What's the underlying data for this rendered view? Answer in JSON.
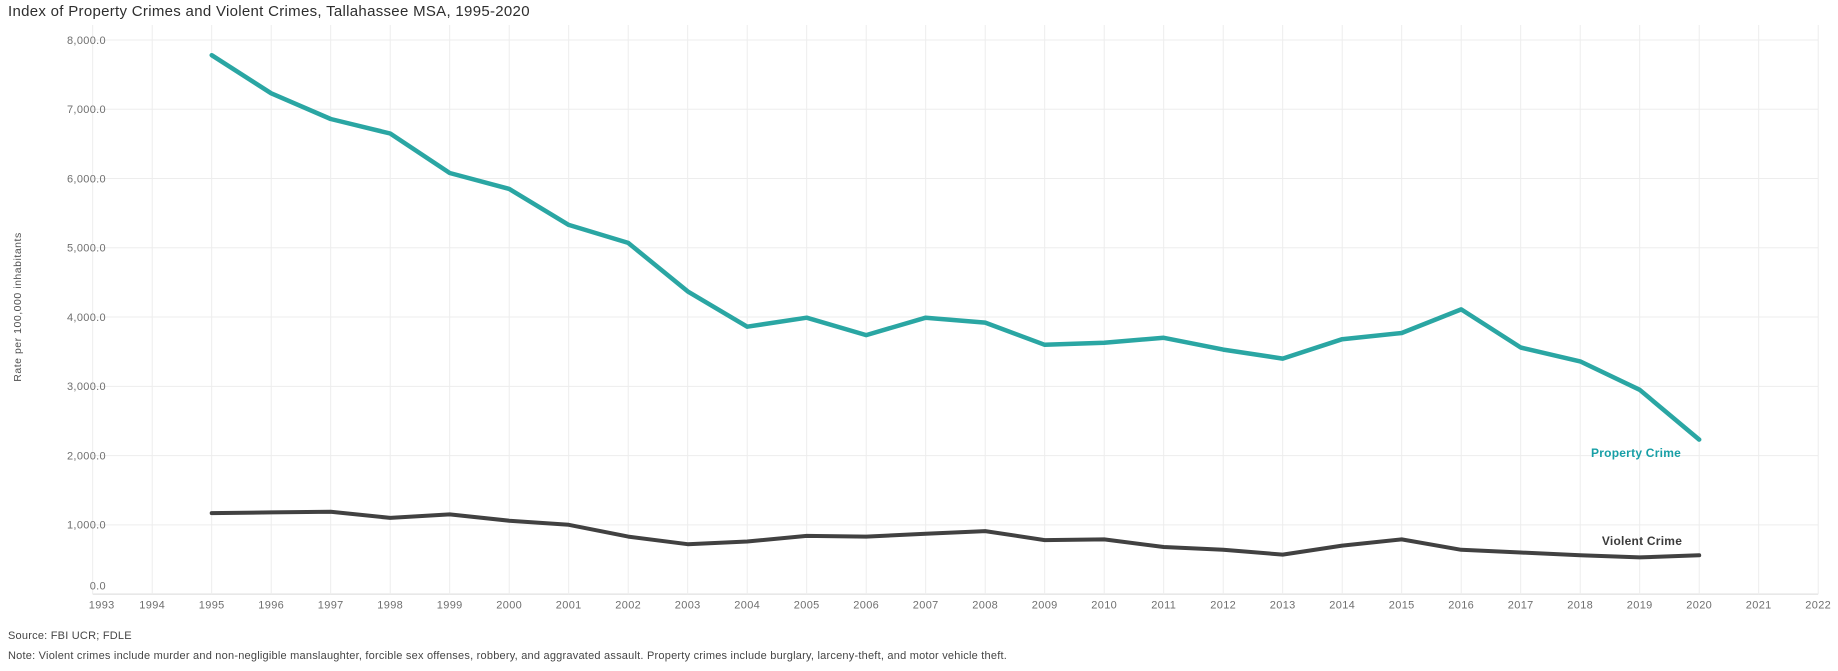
{
  "page": {
    "background": "#ffffff"
  },
  "chart_data": {
    "type": "line",
    "title": "Index of Property Crimes and Violent Crimes, Tallahassee MSA, 1995-2020",
    "ylabel": "Rate per 100,000 inhabitants",
    "xlabel": "",
    "xlim": [
      1993,
      2022
    ],
    "ylim": [
      0,
      8000
    ],
    "grid": true,
    "legend_position": "end-of-line-labels",
    "x_ticks": [
      "1993",
      "1994",
      "1995",
      "1996",
      "1997",
      "1998",
      "1999",
      "2000",
      "2001",
      "2002",
      "2003",
      "2004",
      "2005",
      "2006",
      "2007",
      "2008",
      "2009",
      "2010",
      "2011",
      "2012",
      "2013",
      "2014",
      "2015",
      "2016",
      "2017",
      "2018",
      "2019",
      "2020",
      "2021",
      "2022"
    ],
    "y_ticks": [
      "0.0",
      "1,000.0",
      "2,000.0",
      "3,000.0",
      "4,000.0",
      "5,000.0",
      "6,000.0",
      "7,000.0",
      "8,000.0"
    ],
    "x": [
      1995,
      1996,
      1997,
      1998,
      1999,
      2000,
      2001,
      2002,
      2003,
      2004,
      2005,
      2006,
      2007,
      2008,
      2009,
      2010,
      2011,
      2012,
      2013,
      2014,
      2015,
      2016,
      2017,
      2018,
      2019,
      2020
    ],
    "series": [
      {
        "name": "Property Crime",
        "color": "#2aa6a3",
        "label_color": "#179fa6",
        "values": [
          7780,
          7230,
          6860,
          6650,
          6080,
          5850,
          5330,
          5070,
          4370,
          3860,
          3990,
          3740,
          3990,
          3920,
          3600,
          3630,
          3700,
          3530,
          3400,
          3680,
          3770,
          4110,
          3560,
          3360,
          2950,
          2230
        ]
      },
      {
        "name": "Violent Crime",
        "color": "#414141",
        "label_color": "#3b3b3b",
        "values": [
          1170,
          1180,
          1190,
          1100,
          1150,
          1060,
          1000,
          830,
          720,
          760,
          840,
          830,
          870,
          910,
          780,
          790,
          680,
          640,
          570,
          700,
          790,
          640,
          600,
          560,
          530,
          560
        ]
      }
    ],
    "source": "Source: FBI UCR; FDLE",
    "note": "Note: Violent crimes include murder and non-negligible manslaughter, forcible sex offenses, robbery, and aggravated assault. Property crimes include burglary, larceny-theft, and motor vehicle theft."
  }
}
